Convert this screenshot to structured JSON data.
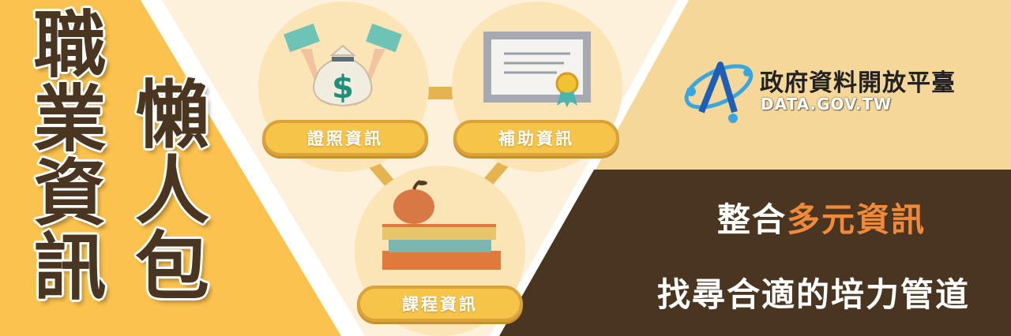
{
  "title": {
    "main": "職業資訊",
    "sub": "懶人包"
  },
  "categories": [
    {
      "label": "證照資訊",
      "icon": "money-bag-icon"
    },
    {
      "label": "補助資訊",
      "icon": "certificate-icon"
    },
    {
      "label": "課程資訊",
      "icon": "books-apple-icon"
    }
  ],
  "logo": {
    "name": "政府資料開放平臺",
    "url": "DATA.GOV.TW"
  },
  "slogan": {
    "line1_prefix": "整合",
    "line1_highlight": "多元資訊",
    "line2": "找尋合適的培力管道"
  },
  "colors": {
    "yellow": "#fbc24e",
    "cream": "#fdf1dc",
    "beige": "#f6d79a",
    "brown": "#4a3520",
    "highlight": "#f08a3a"
  }
}
